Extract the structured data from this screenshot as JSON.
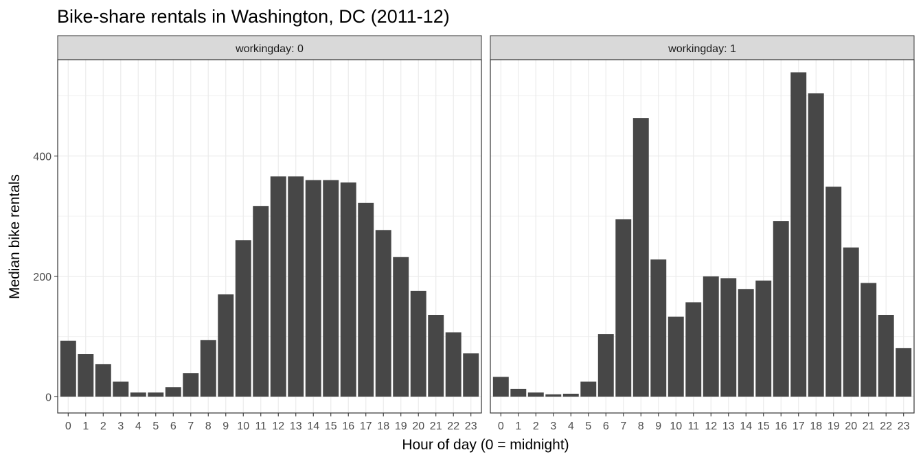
{
  "chart_data": {
    "type": "bar",
    "title": "Bike-share rentals in Washington, DC (2011-12)",
    "xlabel": "Hour of day (0 = midnight)",
    "ylabel": "Median bike rentals",
    "categories": [
      "0",
      "1",
      "2",
      "3",
      "4",
      "5",
      "6",
      "7",
      "8",
      "9",
      "10",
      "11",
      "12",
      "13",
      "14",
      "15",
      "16",
      "17",
      "18",
      "19",
      "20",
      "21",
      "22",
      "23"
    ],
    "y_ticks": [
      "0",
      "200",
      "400"
    ],
    "ylim": [
      -27,
      560
    ],
    "bar_color": "#474747",
    "strip_fill": "#d9d9d9",
    "panels": [
      {
        "label": "workingday: 0",
        "values": [
          93,
          71,
          54,
          25,
          7,
          7,
          16,
          39,
          94,
          170,
          260,
          317,
          366,
          366,
          360,
          360,
          356,
          322,
          277,
          232,
          176,
          136,
          107,
          72
        ]
      },
      {
        "label": "workingday: 1",
        "values": [
          33,
          13,
          7,
          4,
          5,
          25,
          104,
          295,
          463,
          228,
          133,
          157,
          200,
          197,
          179,
          193,
          292,
          539,
          504,
          349,
          248,
          189,
          136,
          81
        ]
      }
    ]
  }
}
